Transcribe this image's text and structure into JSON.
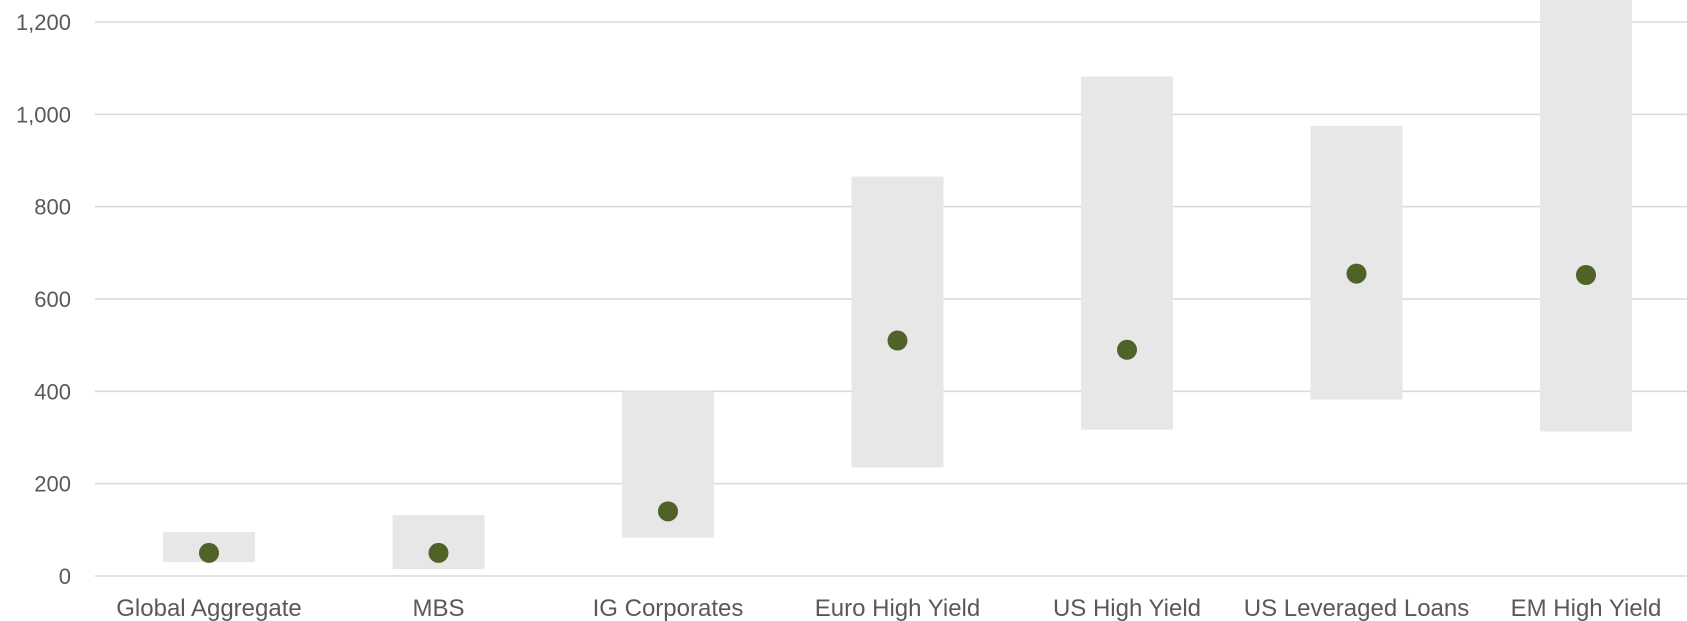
{
  "chart_data": {
    "type": "scatter",
    "title": "",
    "xlabel": "",
    "ylabel": "",
    "categories": [
      "Global Aggregate",
      "MBS",
      "IG Corporates",
      "Euro High Yield",
      "US High Yield",
      "US Leveraged Loans",
      "EM High Yield"
    ],
    "range_low": [
      30,
      15,
      83,
      235,
      317,
      382,
      313
    ],
    "range_high": [
      95,
      132,
      400,
      865,
      1082,
      975,
      1300
    ],
    "values": [
      50,
      50,
      140,
      510,
      490,
      655,
      652
    ],
    "y_ticks": [
      "0",
      "200",
      "400",
      "600",
      "800",
      "1,000",
      "1,200"
    ],
    "y_tick_values": [
      0,
      200,
      400,
      600,
      800,
      1000,
      1200
    ],
    "ylim": [
      0,
      1200
    ],
    "grid": true,
    "colors": {
      "range": "#e7e7e7",
      "marker": "#4f6228",
      "grid": "#d9d9d9",
      "text": "#595959"
    }
  }
}
